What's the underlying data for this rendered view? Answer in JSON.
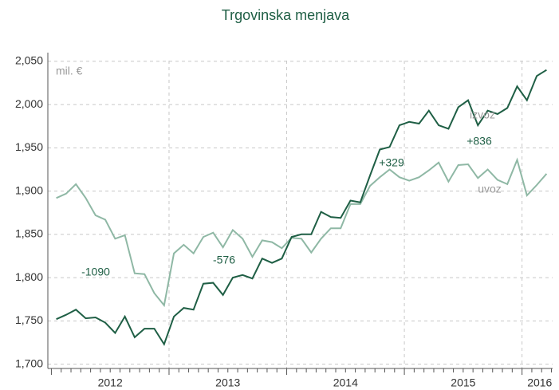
{
  "chart_data": {
    "type": "line",
    "title": "Trgovinska menjava",
    "x": [
      2012.0417,
      2012.125,
      2012.2083,
      2012.2917,
      2012.375,
      2012.4583,
      2012.5417,
      2012.625,
      2012.7083,
      2012.7917,
      2012.875,
      2012.9583,
      2013.0417,
      2013.125,
      2013.2083,
      2013.2917,
      2013.375,
      2013.4583,
      2013.5417,
      2013.625,
      2013.7083,
      2013.7917,
      2013.875,
      2013.9583,
      2014.0417,
      2014.125,
      2014.2083,
      2014.2917,
      2014.375,
      2014.4583,
      2014.5417,
      2014.625,
      2014.7083,
      2014.7917,
      2014.875,
      2014.9583,
      2015.0417,
      2015.125,
      2015.2083,
      2015.2917,
      2015.375,
      2015.4583,
      2015.5417,
      2015.625,
      2015.7083,
      2015.7917,
      2015.875,
      2015.9583,
      2016.0417,
      2016.125,
      2016.2083
    ],
    "series": [
      {
        "name": "izvoz",
        "color": "#1f5f45",
        "values": [
          1752,
          1757,
          1763,
          1753,
          1754,
          1748,
          1736,
          1755,
          1731,
          1741,
          1741,
          1723,
          1755,
          1765,
          1763,
          1793,
          1794,
          1780,
          1800,
          1803,
          1799,
          1822,
          1817,
          1822,
          1847,
          1850,
          1850,
          1876,
          1870,
          1869,
          1889,
          1887,
          1918,
          1948,
          1951,
          1976,
          1980,
          1978,
          1993,
          1976,
          1972,
          1997,
          2005,
          1976,
          1993,
          1989,
          1996,
          2021,
          2005,
          2033,
          2040
        ]
      },
      {
        "name": "uvoz",
        "color": "#8fb8a5",
        "values": [
          1892,
          1897,
          1908,
          1892,
          1872,
          1867,
          1845,
          1849,
          1805,
          1804,
          1782,
          1768,
          1828,
          1838,
          1828,
          1847,
          1852,
          1835,
          1855,
          1845,
          1824,
          1843,
          1841,
          1834,
          1846,
          1845,
          1829,
          1845,
          1857,
          1857,
          1885,
          1885,
          1906,
          1916,
          1925,
          1916,
          1912,
          1916,
          1924,
          1933,
          1911,
          1930,
          1931,
          1915,
          1925,
          1913,
          1908,
          1936,
          1895,
          1907,
          1920
        ]
      }
    ],
    "unit_label": "mil. €",
    "annotations": [
      "-1090",
      "-576",
      "+329",
      "+836"
    ],
    "xlim": [
      2011.97,
      2016.26
    ],
    "xticks": [
      {
        "value": 2012.5,
        "label": "2012"
      },
      {
        "value": 2013.5,
        "label": "2013"
      },
      {
        "value": 2014.5,
        "label": "2014"
      },
      {
        "value": 2015.5,
        "label": "2015"
      },
      {
        "value": 2016.15,
        "label": "2016"
      }
    ],
    "xgrid": [
      2013,
      2014,
      2015,
      2016
    ],
    "ylim": [
      1695,
      2060
    ],
    "yticks": [
      {
        "value": 1700,
        "label": "1,700"
      },
      {
        "value": 1750,
        "label": "1,750"
      },
      {
        "value": 1800,
        "label": "1,800"
      },
      {
        "value": 1850,
        "label": "1,850"
      },
      {
        "value": 1900,
        "label": "1,900"
      },
      {
        "value": 1950,
        "label": "1,950"
      },
      {
        "value": 2000,
        "label": "2,000"
      },
      {
        "value": 2050,
        "label": "2,050"
      }
    ],
    "grid": true
  }
}
